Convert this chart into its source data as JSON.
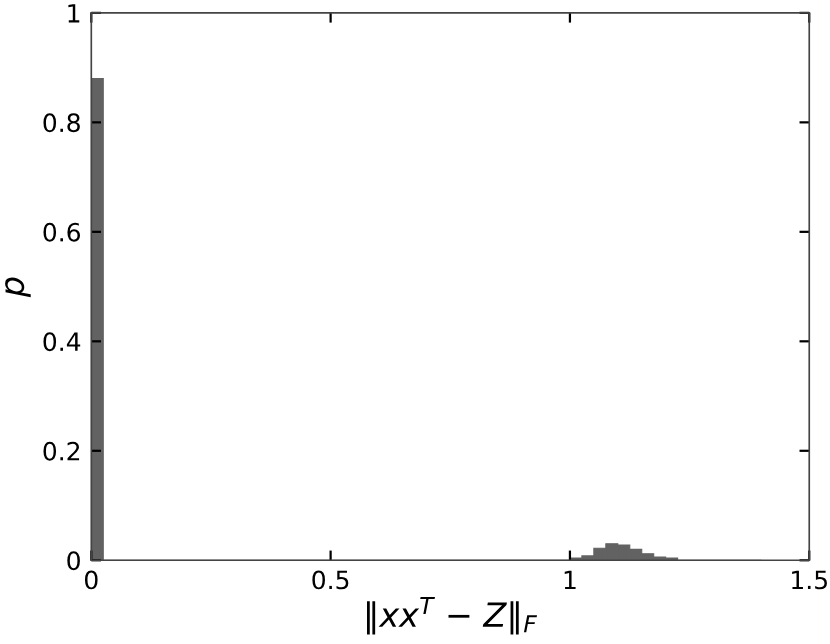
{
  "chart_data": {
    "type": "histogram",
    "xlabel": "‖xx$^{T}$ − Z‖$_{F}$",
    "ylabel": "p",
    "color": "#626262",
    "bins": [
      0,
      0.025,
      0.05,
      0.075,
      0.1,
      0.125,
      0.15,
      0.175,
      0.2,
      0.225,
      0.25,
      0.275,
      0.3,
      0.325,
      0.35,
      0.375,
      0.4,
      0.425,
      0.45,
      0.475,
      0.5,
      0.525,
      0.55,
      0.575,
      0.6,
      0.625,
      0.65,
      0.675,
      0.7,
      0.725,
      0.75,
      0.775,
      0.8,
      0.825,
      0.85,
      0.875,
      0.9,
      0.925,
      0.95,
      0.975,
      1.0,
      1.025,
      1.05,
      1.075,
      1.1,
      1.125,
      1.15,
      1.175,
      1.2,
      1.225,
      1.25,
      1.275,
      1.3,
      1.325,
      1.35,
      1.375,
      1.4
    ],
    "values": [
      0.88,
      0,
      0,
      0,
      0,
      0,
      0,
      0,
      0,
      0,
      0,
      0,
      0,
      0,
      0,
      0,
      0,
      0,
      0,
      0,
      0,
      0,
      0,
      0,
      0,
      0,
      0,
      0,
      0,
      0,
      0,
      0,
      0,
      0,
      0,
      0,
      0,
      0,
      0,
      0,
      0.004,
      0.008,
      0.022,
      0.03,
      0.028,
      0.02,
      0.012,
      0.006,
      0.004,
      0,
      0,
      0,
      0,
      0,
      0,
      0
    ],
    "xlim": [
      0,
      1.5
    ],
    "xticks": [
      0,
      0.5,
      1,
      1.5
    ],
    "ylim": [
      0,
      1
    ],
    "yticks": [
      0,
      0.2,
      0.4,
      0.6,
      0.8,
      1
    ],
    "grid": false,
    "legend": false
  }
}
